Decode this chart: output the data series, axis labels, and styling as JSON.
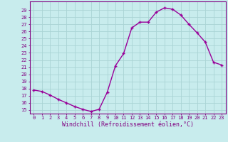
{
  "x": [
    0,
    1,
    2,
    3,
    4,
    5,
    6,
    7,
    8,
    9,
    10,
    11,
    12,
    13,
    14,
    15,
    16,
    17,
    18,
    19,
    20,
    21,
    22,
    23
  ],
  "y": [
    17.8,
    17.6,
    17.1,
    16.5,
    16.0,
    15.5,
    15.1,
    14.8,
    15.1,
    17.5,
    21.2,
    22.9,
    26.5,
    27.3,
    27.3,
    28.7,
    29.3,
    29.1,
    28.3,
    27.0,
    25.8,
    24.5,
    21.7,
    21.3
  ],
  "line_color": "#990099",
  "marker": "+",
  "markersize": 3,
  "markeredgewidth": 1.0,
  "bg_color": "#c8eced",
  "grid_color": "#aad4d4",
  "ylabel_vals": [
    15,
    16,
    17,
    18,
    19,
    20,
    21,
    22,
    23,
    24,
    25,
    26,
    27,
    28,
    29
  ],
  "ylim": [
    14.5,
    30.2
  ],
  "xlim": [
    -0.5,
    23.5
  ],
  "xlabel": "Windchill (Refroidissement éolien,°C)",
  "xlabel_color": "#800080",
  "tick_color": "#800080",
  "axis_color": "#800080",
  "linewidth": 1.0,
  "tick_fontsize": 5.0,
  "xlabel_fontsize": 6.0
}
